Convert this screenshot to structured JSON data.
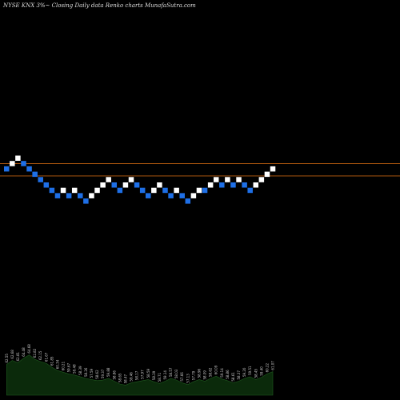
{
  "header": {
    "title": "NYSE KNX  3%~  Closing Daily data  Renko  charts MunafaSutra.com"
  },
  "chart_data": {
    "type": "renko",
    "box_size": 1,
    "colors": {
      "up": "#ffffff",
      "down": "#1e6fe6",
      "reference_line": "#c06010",
      "volume_fill": "#0b2a0b",
      "volume_line": "#1f5a1f"
    },
    "reference_lines": [
      61.5,
      59.2
    ],
    "bricks": [
      {
        "dir": "down",
        "value": 61
      },
      {
        "dir": "up",
        "value": 62
      },
      {
        "dir": "up",
        "value": 63
      },
      {
        "dir": "down",
        "value": 62
      },
      {
        "dir": "down",
        "value": 61
      },
      {
        "dir": "down",
        "value": 60
      },
      {
        "dir": "down",
        "value": 59
      },
      {
        "dir": "down",
        "value": 58
      },
      {
        "dir": "down",
        "value": 57
      },
      {
        "dir": "down",
        "value": 56
      },
      {
        "dir": "up",
        "value": 57
      },
      {
        "dir": "down",
        "value": 56
      },
      {
        "dir": "up",
        "value": 57
      },
      {
        "dir": "down",
        "value": 56
      },
      {
        "dir": "down",
        "value": 55
      },
      {
        "dir": "up",
        "value": 56
      },
      {
        "dir": "up",
        "value": 57
      },
      {
        "dir": "up",
        "value": 58
      },
      {
        "dir": "up",
        "value": 59
      },
      {
        "dir": "down",
        "value": 58
      },
      {
        "dir": "down",
        "value": 57
      },
      {
        "dir": "up",
        "value": 58
      },
      {
        "dir": "up",
        "value": 59
      },
      {
        "dir": "down",
        "value": 58
      },
      {
        "dir": "down",
        "value": 57
      },
      {
        "dir": "down",
        "value": 56
      },
      {
        "dir": "up",
        "value": 57
      },
      {
        "dir": "up",
        "value": 58
      },
      {
        "dir": "down",
        "value": 57
      },
      {
        "dir": "down",
        "value": 56
      },
      {
        "dir": "up",
        "value": 57
      },
      {
        "dir": "down",
        "value": 56
      },
      {
        "dir": "down",
        "value": 55
      },
      {
        "dir": "up",
        "value": 56
      },
      {
        "dir": "up",
        "value": 57
      },
      {
        "dir": "down",
        "value": 57
      },
      {
        "dir": "up",
        "value": 58
      },
      {
        "dir": "up",
        "value": 59
      },
      {
        "dir": "down",
        "value": 58
      },
      {
        "dir": "up",
        "value": 59
      },
      {
        "dir": "down",
        "value": 58
      },
      {
        "dir": "up",
        "value": 59
      },
      {
        "dir": "down",
        "value": 58
      },
      {
        "dir": "down",
        "value": 57
      },
      {
        "dir": "up",
        "value": 58
      },
      {
        "dir": "up",
        "value": 59
      },
      {
        "dir": "up",
        "value": 60
      },
      {
        "dir": "up",
        "value": 61
      }
    ],
    "price_labels": [
      "62.55",
      "62.68",
      "62.81",
      "64.48",
      "64.68",
      "62.82",
      "62.15",
      "61.67",
      "61.85",
      "60.34",
      "60.21",
      "59.67",
      "59.48",
      "58.39",
      "58.26",
      "57.59",
      "58.62",
      "59.37",
      "59.88",
      "58.86",
      "58.65",
      "58.47",
      "59.46",
      "58.17",
      "57.97",
      "58.59",
      "58.39",
      "58.71",
      "59.14",
      "58.57",
      "58.03",
      "57.66",
      "57.13",
      "57.79",
      "58.96",
      "58.09",
      "58.62",
      "60.09",
      "59.14",
      "58.86",
      "58.61",
      "58.37",
      "59.20",
      "59.51",
      "58.45",
      "59.40",
      "60.22",
      "61.07"
    ],
    "volume": [
      0.55,
      0.62,
      0.58,
      0.66,
      0.72,
      0.64,
      0.6,
      0.57,
      0.5,
      0.44,
      0.41,
      0.38,
      0.36,
      0.33,
      0.3,
      0.28,
      0.26,
      0.27,
      0.3,
      0.25,
      0.2,
      0.18,
      0.22,
      0.24,
      0.26,
      0.28,
      0.24,
      0.21,
      0.25,
      0.3,
      0.27,
      0.22,
      0.19,
      0.24,
      0.28,
      0.25,
      0.3,
      0.34,
      0.29,
      0.26,
      0.22,
      0.25,
      0.3,
      0.33,
      0.28,
      0.32,
      0.38,
      0.42
    ]
  }
}
